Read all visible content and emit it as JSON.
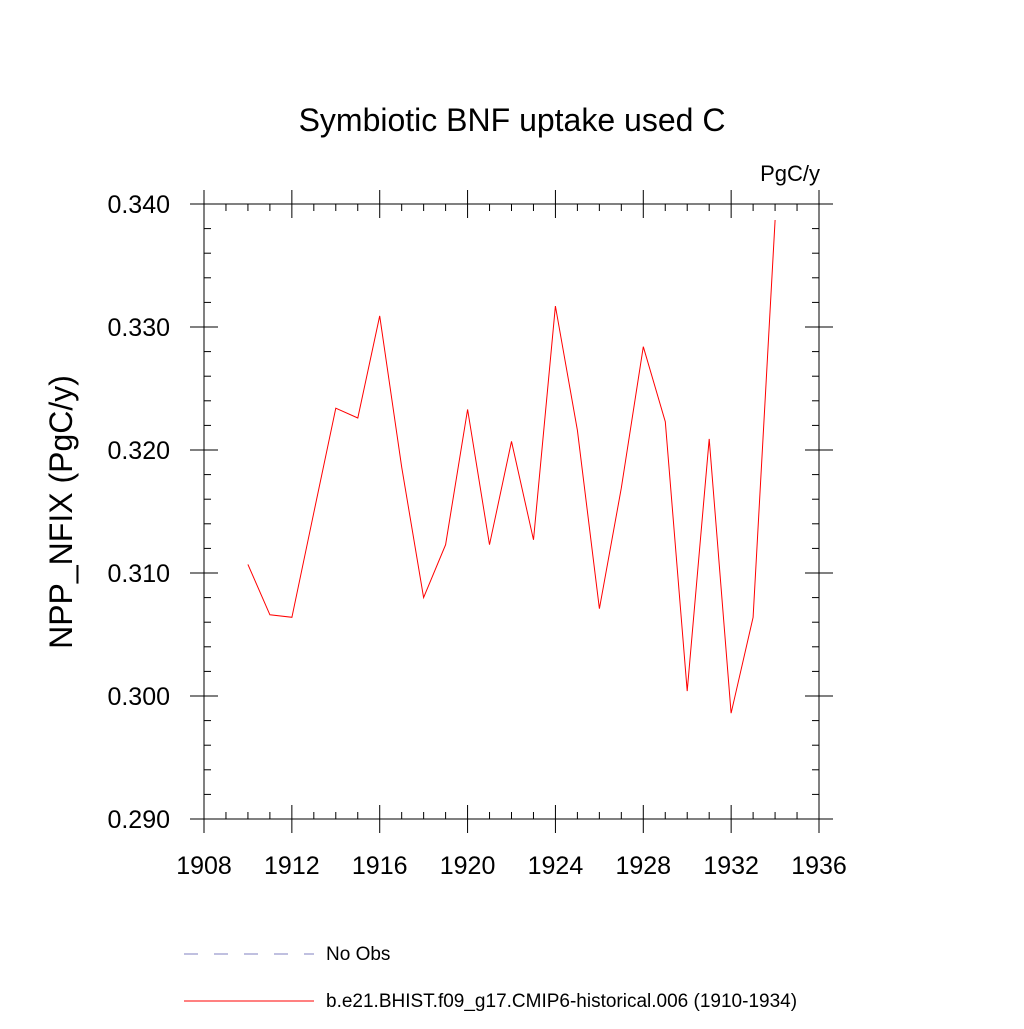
{
  "chart_data": {
    "type": "line",
    "title": "Symbiotic BNF uptake used C",
    "units_label": "PgC/y",
    "ylabel": "NPP_NFIX  (PgC/y)",
    "xlabel": "",
    "xlim": [
      1908,
      1936
    ],
    "ylim": [
      0.29,
      0.34
    ],
    "x_ticks": [
      1908,
      1912,
      1916,
      1920,
      1924,
      1928,
      1932,
      1936
    ],
    "x_tick_labels": [
      "1908",
      "1912",
      "1916",
      "1920",
      "1924",
      "1928",
      "1932",
      "1936"
    ],
    "y_ticks": [
      0.29,
      0.3,
      0.31,
      0.32,
      0.33,
      0.34
    ],
    "y_tick_labels": [
      "0.290",
      "0.300",
      "0.310",
      "0.320",
      "0.330",
      "0.340"
    ],
    "series": [
      {
        "name": "b.e21.BHIST.f09_g17.CMIP6-historical.006 (1910-1934)",
        "color": "#ff0000",
        "dash": "solid",
        "x": [
          1910,
          1911,
          1912,
          1913,
          1914,
          1915,
          1916,
          1917,
          1918,
          1919,
          1920,
          1921,
          1922,
          1923,
          1924,
          1925,
          1926,
          1927,
          1928,
          1929,
          1930,
          1931,
          1932,
          1933,
          1934
        ],
        "values": [
          0.3107,
          0.3066,
          0.3064,
          0.3149,
          0.3234,
          0.3226,
          0.3309,
          0.3186,
          0.308,
          0.3123,
          0.3233,
          0.3123,
          0.3207,
          0.3127,
          0.3317,
          0.3216,
          0.3071,
          0.3169,
          0.3284,
          0.3223,
          0.3004,
          0.3209,
          0.2986,
          0.3064,
          0.3387
        ]
      }
    ],
    "legend": [
      {
        "label": "No Obs",
        "color": "#8080c0",
        "dash": "dashed"
      },
      {
        "label": "b.e21.BHIST.f09_g17.CMIP6-historical.006 (1910-1934)",
        "color": "#ff0000",
        "dash": "solid"
      }
    ]
  }
}
